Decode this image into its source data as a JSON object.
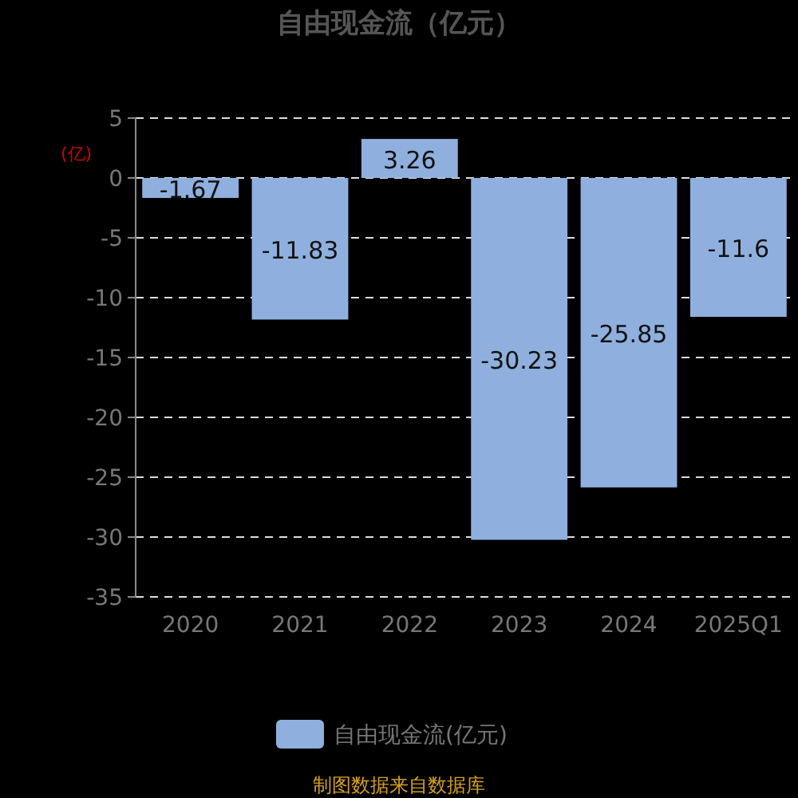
{
  "chart_data": {
    "type": "bar",
    "title": "自由现金流（亿元）",
    "ylabel": "(亿)",
    "categories": [
      "2020",
      "2021",
      "2022",
      "2023",
      "2024",
      "2025Q1"
    ],
    "series": [
      {
        "name": "自由现金流(亿元)",
        "color": "#8fb0de",
        "values": [
          -1.67,
          -11.83,
          3.26,
          -30.23,
          -25.85,
          -11.6
        ]
      }
    ],
    "ylim": [
      -35,
      5
    ],
    "yticks": [
      -35,
      -30,
      -25,
      -20,
      -15,
      -10,
      -5,
      0,
      5
    ],
    "grid": "y",
    "legend": "bottom",
    "data_labels": true,
    "annotations": [
      "制图数据来自数据库"
    ]
  }
}
